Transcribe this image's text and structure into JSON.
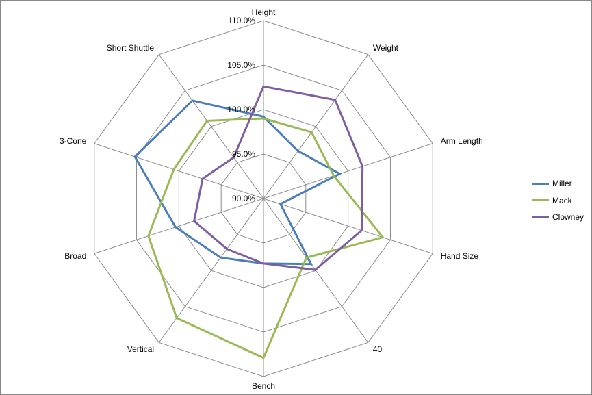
{
  "chart_data": {
    "type": "radar",
    "categories": [
      "Height",
      "Weight",
      "Arm Length",
      "Hand Size",
      "40",
      "Bench",
      "Vertical",
      "Broad",
      "3-Cone",
      "Short Shuttle"
    ],
    "rlim": [
      90,
      110
    ],
    "ticks": [
      {
        "value": 90,
        "label": "90.0%"
      },
      {
        "value": 95,
        "label": "95.0%"
      },
      {
        "value": 100,
        "label": "100.0%"
      },
      {
        "value": 105,
        "label": "105.0%"
      },
      {
        "value": 110,
        "label": "110.0%"
      }
    ],
    "series": [
      {
        "name": "Miller",
        "color": "#4a7ebb",
        "values": [
          99.2,
          96.6,
          99.0,
          92.0,
          99.1,
          97.3,
          98.2,
          100.4,
          105.2,
          103.6
        ]
      },
      {
        "name": "Mack",
        "color": "#98b954",
        "values": [
          99.0,
          99.2,
          98.3,
          104.1,
          98.2,
          107.9,
          106.6,
          103.6,
          100.6,
          100.8
        ]
      },
      {
        "name": "Clowney",
        "color": "#7e5ea3",
        "values": [
          102.6,
          103.7,
          101.7,
          101.6,
          99.9,
          97.3,
          97.0,
          98.2,
          97.2,
          95.7
        ]
      }
    ],
    "grid": true,
    "legend_position": "right"
  }
}
